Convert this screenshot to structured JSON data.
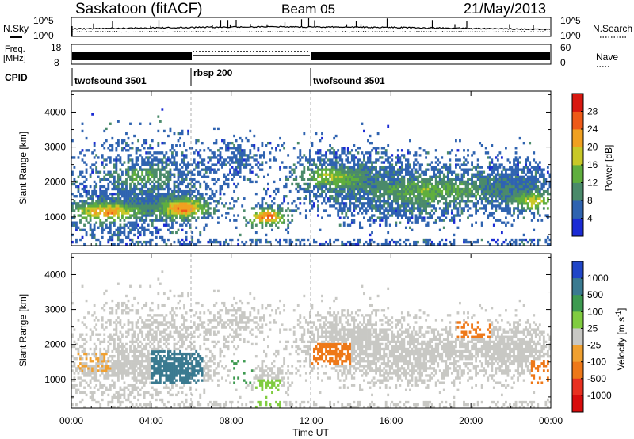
{
  "header": {
    "station": "Saskatoon (fitACF)",
    "beam": "Beam 05",
    "date": "21/May/2013"
  },
  "nsky": {
    "left_label": "N.Sky",
    "right_label": "N.Search",
    "left_ticks": [
      "10^5",
      "10^0"
    ],
    "right_ticks": [
      "10^5",
      "10^0"
    ]
  },
  "freq": {
    "left_label_1": "Freq.",
    "left_label_2": "[MHz]",
    "right_label": "Nave",
    "left_ticks": [
      "18",
      "8"
    ],
    "right_ticks": [
      "60",
      "0"
    ]
  },
  "cpid": {
    "label": "CPID",
    "segments": [
      {
        "name": "twofsound 3501",
        "start": 0,
        "end": 6
      },
      {
        "name": "rbsp 200",
        "start": 6,
        "end": 12
      },
      {
        "name": "twofsound 3501",
        "start": 12,
        "end": 24
      }
    ]
  },
  "power_panel": {
    "ylabel": "Slant Range [km]",
    "yticks": [
      "1000",
      "2000",
      "3000",
      "4000"
    ],
    "colorbar_label": "Power [dB]",
    "colorbar_ticks": [
      "4",
      "8",
      "12",
      "16",
      "20",
      "24",
      "28"
    ],
    "colors": [
      "#1b2bd4",
      "#2f63b0",
      "#4a8a6a",
      "#5fae3e",
      "#c8c828",
      "#f0a020",
      "#ee5a18",
      "#d81810"
    ]
  },
  "velocity_panel": {
    "ylabel": "Slant Range [km]",
    "yticks": [
      "1000",
      "2000",
      "3000",
      "4000"
    ],
    "colorbar_label": "Velocity [m s^-1]",
    "colorbar_ticks": [
      "1000",
      "500",
      "100",
      "25",
      "-25",
      "-100",
      "-500",
      "-1000"
    ],
    "colors": [
      "#2046c8",
      "#3a7a90",
      "#3d9a50",
      "#80cc40",
      "#c8c8c4",
      "#f0a030",
      "#ee7818",
      "#e83020",
      "#d80c0c"
    ]
  },
  "x_axis": {
    "ticks": [
      "00:00",
      "04:00",
      "08:00",
      "12:00",
      "16:00",
      "20:00",
      "00:00"
    ],
    "label": "Time UT"
  },
  "chart_data": [
    {
      "type": "heatmap",
      "title": "Saskatoon (fitACF) Beam 05 21/May/2013",
      "ylabel": "Slant Range [km]",
      "xlabel": "Time UT",
      "xlim": [
        0,
        24
      ],
      "ylim": [
        180,
        4600
      ],
      "colorbar": {
        "label": "Power [dB]",
        "range": [
          0,
          32
        ],
        "ticks": [
          4,
          8,
          12,
          16,
          20,
          24,
          28
        ]
      },
      "features": [
        {
          "start": 0,
          "end": 3.5,
          "range": [
            800,
            1500
          ],
          "value": 24
        },
        {
          "start": 4.5,
          "end": 7.5,
          "range": [
            900,
            1400
          ],
          "value": 26
        },
        {
          "start": 9.0,
          "end": 10.5,
          "range": [
            700,
            1200
          ],
          "value": 28
        },
        {
          "start": 22.5,
          "end": 24,
          "range": [
            1200,
            1600
          ],
          "value": 20
        },
        {
          "start": 7.5,
          "end": 9.5,
          "range": [
            2300,
            3200
          ],
          "value": 8
        },
        {
          "start": 12,
          "end": 24,
          "range": [
            1500,
            2500
          ],
          "value": 14
        }
      ]
    },
    {
      "type": "heatmap",
      "title": "Saskatoon (fitACF) Beam 05 21/May/2013",
      "ylabel": "Slant Range [km]",
      "xlabel": "Time UT",
      "xlim": [
        0,
        24
      ],
      "ylim": [
        180,
        4600
      ],
      "colorbar": {
        "label": "Velocity [m s^-1]",
        "ticks": [
          1000,
          500,
          100,
          25,
          -25,
          -100,
          -500,
          -1000
        ]
      },
      "features": [
        {
          "start": 4.0,
          "end": 6.5,
          "range": [
            900,
            1800
          ],
          "value": 300
        },
        {
          "start": 8.0,
          "end": 9.0,
          "range": [
            900,
            1600
          ],
          "value": 150
        },
        {
          "start": 12.0,
          "end": 14.0,
          "range": [
            1500,
            2000
          ],
          "value": -300
        },
        {
          "start": 19.5,
          "end": 21.0,
          "range": [
            2200,
            2600
          ],
          "value": -150
        },
        {
          "start": 23.0,
          "end": 24,
          "range": [
            800,
            1500
          ],
          "value": -150
        },
        {
          "start": 0,
          "end": 24,
          "range": [
            600,
            3300
          ],
          "value": 0
        }
      ]
    }
  ]
}
